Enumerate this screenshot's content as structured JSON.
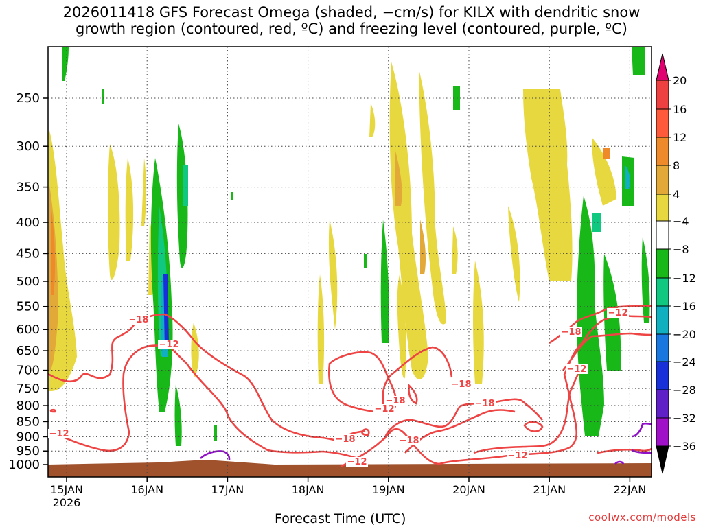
{
  "title_line1": "2026011418 GFS Forecast Omega (shaded, −cm/s) for KILX with dendritic snow",
  "title_line2": "growth region (contoured, red, ºC) and freezing level (contoured, purple, ºC)",
  "credit": "coolwx.com/models",
  "chart_data": {
    "type": "heatmap",
    "title": "2026011418 GFS Forecast Omega (shaded, −cm/s) for KILX with dendritic snow growth region (contoured, red, ºC) and freezing level (contoured, purple, ºC)",
    "xlabel": "Forecast Time (UTC)",
    "ylabel": "",
    "x_ticks": [
      "15JAN",
      "16JAN",
      "17JAN",
      "18JAN",
      "19JAN",
      "20JAN",
      "21JAN",
      "22JAN"
    ],
    "x_subtick": "2026",
    "y_ticks": [
      250,
      300,
      350,
      400,
      450,
      500,
      550,
      600,
      650,
      700,
      750,
      800,
      850,
      900,
      950,
      1000
    ],
    "ylim": [
      1000,
      200
    ],
    "colorbar": {
      "labels": [
        "20",
        "16",
        "12",
        "8",
        "4",
        "−4",
        "−8",
        "−12",
        "−16",
        "−20",
        "−24",
        "−28",
        "−32",
        "−36"
      ],
      "colors": [
        "#e0006f",
        "#ee4040",
        "#ff5a3a",
        "#ee8a2a",
        "#e2a838",
        "#e8d840",
        "#ffffff",
        "#18b818",
        "#10c880",
        "#10b0c0",
        "#1878e0",
        "#1830d8",
        "#6020c8",
        "#a010c8",
        "#a0a0a0",
        "#000000"
      ]
    },
    "contour_labels": [
      "−18",
      "−12",
      "−12",
      "−18",
      "−18",
      "−18",
      "−18",
      "−12",
      "−18",
      "−12",
      "−12",
      "−18",
      "−12",
      "−12"
    ],
    "series": [
      {
        "name": "Omega shaded (−cm/s)",
        "color": "#e8d840"
      },
      {
        "name": "Dendritic snow growth region (ºC)",
        "color": "#ee4444"
      },
      {
        "name": "Freezing level (ºC)",
        "color": "#9010c8"
      }
    ]
  }
}
